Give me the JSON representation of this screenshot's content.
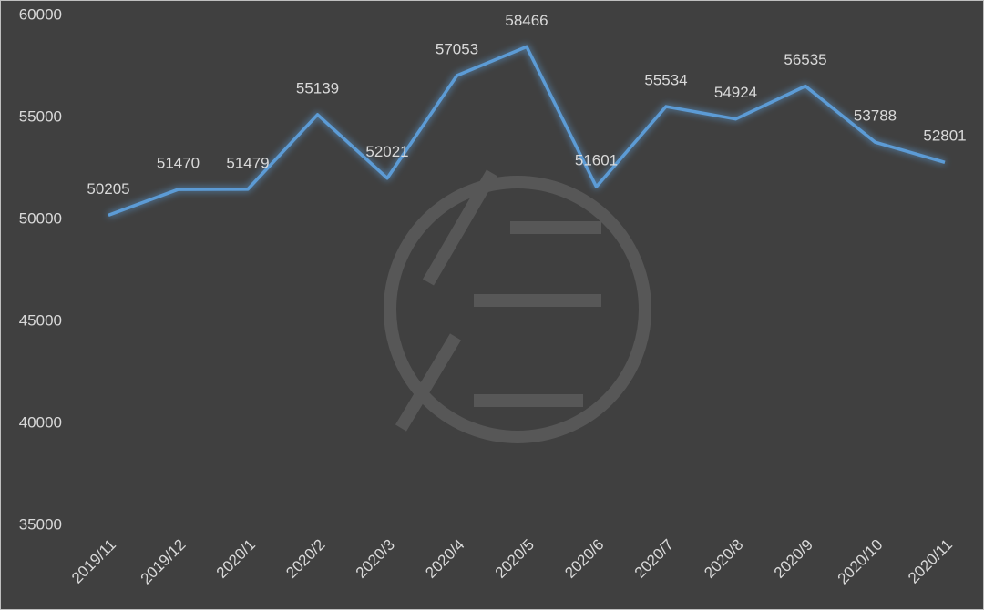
{
  "chart_data": {
    "type": "line",
    "categories": [
      "2019/11",
      "2019/12",
      "2020/1",
      "2020/2",
      "2020/3",
      "2020/4",
      "2020/5",
      "2020/6",
      "2020/7",
      "2020/8",
      "2020/9",
      "2020/10",
      "2020/11"
    ],
    "series": [
      {
        "color": "#5b9bd5",
        "values": [
          50205,
          51470,
          51479,
          55139,
          52021,
          57053,
          58466,
          51601,
          55534,
          54924,
          56535,
          53788,
          52801
        ]
      }
    ],
    "ylim": [
      35000,
      60000
    ],
    "yticks": [
      35000,
      40000,
      45000,
      50000,
      55000,
      60000
    ],
    "grid": false
  }
}
